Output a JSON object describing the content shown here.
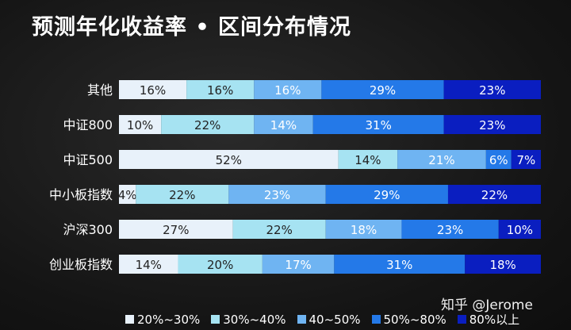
{
  "title": "预测年化收益率 • 区间分布情况",
  "watermark": "知乎 @Jerome",
  "chart_data": {
    "type": "bar",
    "orientation": "horizontal",
    "stacked": true,
    "normalized": true,
    "categories": [
      "其他",
      "中证800",
      "中证500",
      "中小板指数",
      "沪深300",
      "创业板指数"
    ],
    "series": [
      {
        "name": "20%~30%",
        "color": "#e8f1fa",
        "text_color": "#222222",
        "values": [
          16,
          10,
          52,
          4,
          27,
          14
        ]
      },
      {
        "name": "30%~40%",
        "color": "#a6e3f2",
        "text_color": "#222222",
        "values": [
          16,
          22,
          14,
          22,
          22,
          20
        ]
      },
      {
        "name": "40~50%",
        "color": "#6fb4f2",
        "text_color": "#ffffff",
        "values": [
          16,
          14,
          21,
          23,
          18,
          17
        ]
      },
      {
        "name": "50%~80%",
        "color": "#2479e8",
        "text_color": "#ffffff",
        "values": [
          29,
          31,
          6,
          29,
          23,
          31
        ]
      },
      {
        "name": "80%以上",
        "color": "#0a1ec0",
        "text_color": "#ffffff",
        "values": [
          23,
          23,
          7,
          22,
          10,
          18
        ]
      }
    ],
    "value_suffix": "%",
    "grid": false,
    "legend_position": "bottom"
  }
}
